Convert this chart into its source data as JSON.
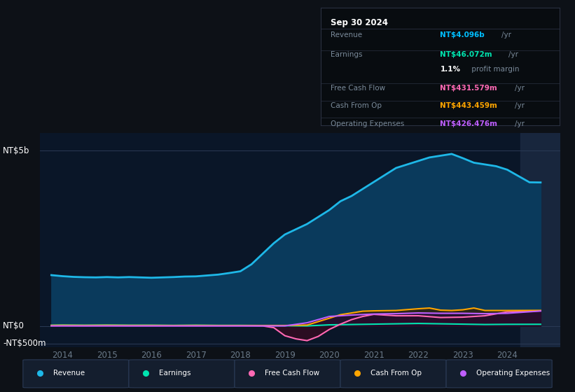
{
  "bg_color": "#0d1117",
  "chart_bg": "#0a1628",
  "title_box": {
    "date": "Sep 30 2024",
    "rows": [
      {
        "label": "Revenue",
        "value": "NT$4.096b",
        "unit": "/yr",
        "value_color": "#00bfff"
      },
      {
        "label": "Earnings",
        "value": "NT$46.072m",
        "unit": "/yr",
        "value_color": "#00e5b0"
      },
      {
        "label": "",
        "value": "1.1%",
        "unit": " profit margin",
        "value_color": "#ffffff"
      },
      {
        "label": "Free Cash Flow",
        "value": "NT$431.579m",
        "unit": "/yr",
        "value_color": "#ff69b4"
      },
      {
        "label": "Cash From Op",
        "value": "NT$443.459m",
        "unit": "/yr",
        "value_color": "#ffa500"
      },
      {
        "label": "Operating Expenses",
        "value": "NT$426.476m",
        "unit": "/yr",
        "value_color": "#bf5fff"
      }
    ]
  },
  "y_label_top": "NT$5b",
  "y_label_mid": "NT$0",
  "y_label_bot": "-NT$500m",
  "x_ticks": [
    "2014",
    "2015",
    "2016",
    "2017",
    "2018",
    "2019",
    "2020",
    "2021",
    "2022",
    "2023",
    "2024"
  ],
  "ylim": [
    -600,
    5500
  ],
  "xlim": [
    2013.5,
    2025.2
  ],
  "series": {
    "Revenue": {
      "color": "#1eb8e8",
      "fill_color": "#0a3a5c",
      "lw": 2.0,
      "x": [
        2013.75,
        2014,
        2014.25,
        2014.5,
        2014.75,
        2015,
        2015.25,
        2015.5,
        2015.75,
        2016,
        2016.25,
        2016.5,
        2016.75,
        2017,
        2017.25,
        2017.5,
        2017.75,
        2018,
        2018.25,
        2018.5,
        2018.75,
        2019,
        2019.25,
        2019.5,
        2019.75,
        2020,
        2020.25,
        2020.5,
        2020.75,
        2021,
        2021.25,
        2021.5,
        2021.75,
        2022,
        2022.25,
        2022.5,
        2022.75,
        2023,
        2023.25,
        2023.5,
        2023.75,
        2024,
        2024.5,
        2024.75
      ],
      "y": [
        1450,
        1420,
        1400,
        1390,
        1385,
        1395,
        1385,
        1395,
        1385,
        1375,
        1385,
        1395,
        1410,
        1415,
        1440,
        1465,
        1510,
        1560,
        1760,
        2060,
        2360,
        2610,
        2760,
        2910,
        3110,
        3310,
        3560,
        3710,
        3910,
        4110,
        4310,
        4510,
        4610,
        4710,
        4810,
        4860,
        4910,
        4790,
        4660,
        4610,
        4560,
        4460,
        4100,
        4096
      ]
    },
    "Earnings": {
      "color": "#00e5b0",
      "fill_color": "#002a1e",
      "lw": 1.5,
      "x": [
        2013.75,
        2014,
        2014.5,
        2015,
        2015.5,
        2016,
        2016.5,
        2017,
        2017.5,
        2018,
        2018.5,
        2019,
        2019.5,
        2020,
        2020.5,
        2021,
        2021.5,
        2022,
        2022.5,
        2023,
        2023.5,
        2024,
        2024.75
      ],
      "y": [
        20,
        25,
        20,
        25,
        20,
        20,
        15,
        20,
        15,
        15,
        10,
        5,
        0,
        30,
        40,
        50,
        60,
        70,
        60,
        50,
        40,
        45,
        46
      ]
    },
    "FreeCashFlow": {
      "color": "#ff69b4",
      "fill_color": "#3a0a20",
      "lw": 1.5,
      "x": [
        2013.75,
        2014,
        2014.5,
        2015,
        2015.5,
        2016,
        2016.5,
        2017,
        2017.5,
        2018,
        2018.5,
        2018.75,
        2019,
        2019.25,
        2019.5,
        2019.75,
        2020,
        2020.25,
        2020.5,
        2020.75,
        2021,
        2021.5,
        2022,
        2022.5,
        2023,
        2023.5,
        2024,
        2024.75
      ],
      "y": [
        5,
        8,
        5,
        8,
        5,
        5,
        5,
        5,
        5,
        5,
        0,
        -50,
        -280,
        -370,
        -420,
        -300,
        -100,
        50,
        180,
        270,
        330,
        290,
        290,
        240,
        250,
        290,
        400,
        431
      ]
    },
    "CashFromOp": {
      "color": "#ffa500",
      "fill_color": "#3a2000",
      "lw": 1.5,
      "x": [
        2013.75,
        2014,
        2014.5,
        2015,
        2015.5,
        2016,
        2016.5,
        2017,
        2017.5,
        2018,
        2018.5,
        2019,
        2019.5,
        2020,
        2020.25,
        2020.5,
        2020.75,
        2021,
        2021.5,
        2022,
        2022.25,
        2022.5,
        2022.75,
        2023,
        2023.25,
        2023.5,
        2024,
        2024.75
      ],
      "y": [
        15,
        18,
        15,
        18,
        15,
        15,
        12,
        15,
        12,
        12,
        12,
        12,
        25,
        220,
        320,
        370,
        420,
        430,
        440,
        490,
        510,
        450,
        440,
        460,
        510,
        440,
        440,
        443
      ]
    },
    "OperatingExpenses": {
      "color": "#bf5fff",
      "fill_color": "#200838",
      "lw": 1.5,
      "x": [
        2013.75,
        2014,
        2014.5,
        2015,
        2015.5,
        2016,
        2016.5,
        2017,
        2017.5,
        2018,
        2018.5,
        2019,
        2019.5,
        2020,
        2020.5,
        2021,
        2021.5,
        2022,
        2022.5,
        2023,
        2023.5,
        2024,
        2024.75
      ],
      "y": [
        0,
        0,
        0,
        0,
        0,
        0,
        0,
        0,
        0,
        0,
        0,
        0,
        90,
        270,
        310,
        340,
        350,
        370,
        360,
        360,
        350,
        360,
        426
      ]
    }
  },
  "legend": [
    {
      "label": "Revenue",
      "color": "#1eb8e8"
    },
    {
      "label": "Earnings",
      "color": "#00e5b0"
    },
    {
      "label": "Free Cash Flow",
      "color": "#ff69b4"
    },
    {
      "label": "Cash From Op",
      "color": "#ffa500"
    },
    {
      "label": "Operating Expenses",
      "color": "#bf5fff"
    }
  ]
}
